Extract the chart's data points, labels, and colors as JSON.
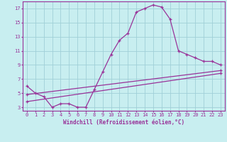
{
  "title": "",
  "xlabel": "Windchill (Refroidissement éolien,°C)",
  "bg_color": "#c8eef0",
  "grid_color": "#a0d0d8",
  "line_color": "#993399",
  "line1_x": [
    0,
    1,
    2,
    3,
    4,
    5,
    6,
    7,
    8,
    9,
    10,
    11,
    12,
    13,
    14,
    15,
    16,
    17,
    18,
    19,
    20,
    21,
    22,
    23
  ],
  "line1_y": [
    6.0,
    5.0,
    4.5,
    3.0,
    3.5,
    3.5,
    3.0,
    3.0,
    5.5,
    8.0,
    10.5,
    12.5,
    13.5,
    16.5,
    17.0,
    17.5,
    17.2,
    15.5,
    11.0,
    10.5,
    10.0,
    9.5,
    9.5,
    9.0
  ],
  "line2_x": [
    0,
    23
  ],
  "line2_y": [
    4.8,
    8.2
  ],
  "line3_x": [
    0,
    23
  ],
  "line3_y": [
    3.8,
    7.8
  ],
  "xlim": [
    -0.5,
    23.5
  ],
  "ylim": [
    2.5,
    18.0
  ],
  "xticks": [
    0,
    1,
    2,
    3,
    4,
    5,
    6,
    7,
    8,
    9,
    10,
    11,
    12,
    13,
    14,
    15,
    16,
    17,
    18,
    19,
    20,
    21,
    22,
    23
  ],
  "yticks": [
    3,
    5,
    7,
    9,
    11,
    13,
    15,
    17
  ],
  "tick_fontsize": 5.0,
  "xlabel_fontsize": 5.5
}
